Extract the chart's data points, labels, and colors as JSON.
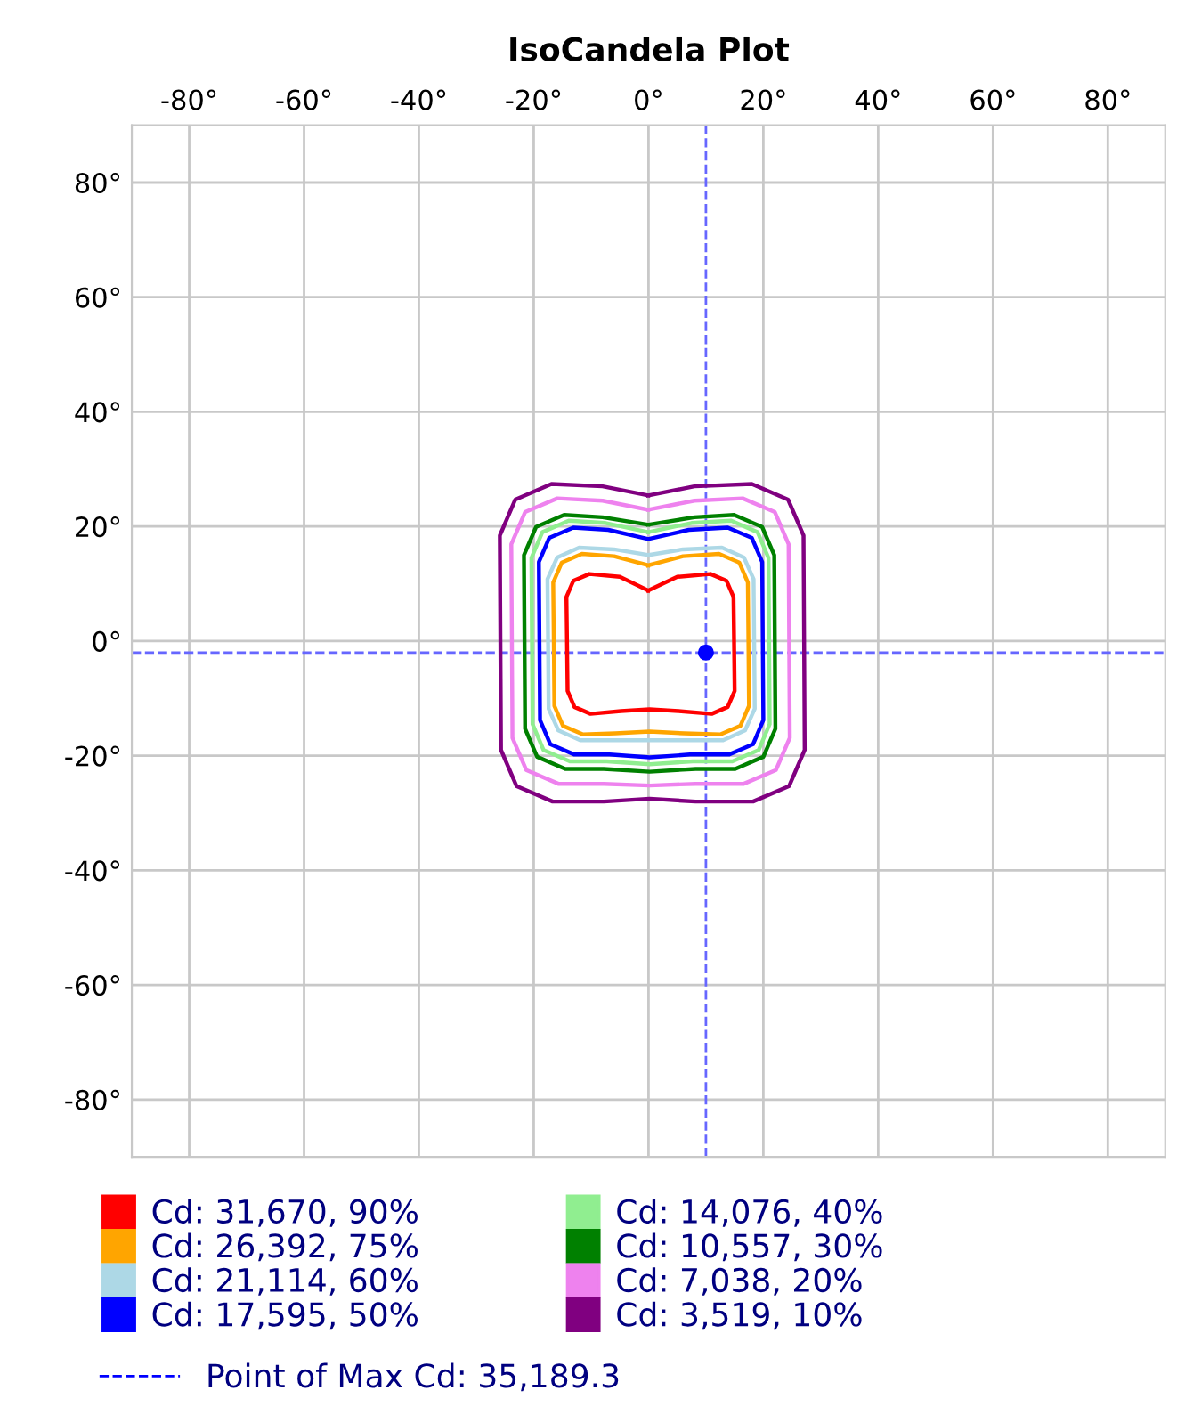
{
  "chart_data": {
    "type": "line",
    "title": "IsoCandela Plot",
    "xlim": [
      -90,
      90
    ],
    "ylim": [
      -90,
      90
    ],
    "xticks": [
      {
        "value": -80,
        "label": "-80°"
      },
      {
        "value": -60,
        "label": "-60°"
      },
      {
        "value": -40,
        "label": "-40°"
      },
      {
        "value": -20,
        "label": "-20°"
      },
      {
        "value": 0,
        "label": "0°"
      },
      {
        "value": 20,
        "label": "20°"
      },
      {
        "value": 40,
        "label": "40°"
      },
      {
        "value": 60,
        "label": "60°"
      },
      {
        "value": 80,
        "label": "80°"
      }
    ],
    "yticks": [
      {
        "value": 80,
        "label": "80°"
      },
      {
        "value": 60,
        "label": "60°"
      },
      {
        "value": 40,
        "label": "40°"
      },
      {
        "value": 20,
        "label": "20°"
      },
      {
        "value": 0,
        "label": "0°"
      },
      {
        "value": -20,
        "label": "-20°"
      },
      {
        "value": -40,
        "label": "-40°"
      },
      {
        "value": -60,
        "label": "-60°"
      },
      {
        "value": -80,
        "label": "-80°"
      }
    ],
    "grid": true,
    "legend": "bottom",
    "line_style": "solid",
    "marker": "none",
    "series": [
      {
        "name": "Cd: 31,670, 90%",
        "color": "#ff0000",
        "x": [
          0,
          -5,
          -10.3,
          -13.1,
          -14.3,
          -14.2,
          -14.1,
          -12.9,
          -10.1,
          -4.8,
          0.2,
          5.2,
          11,
          13.8,
          15,
          14.9,
          14.8,
          13.6,
          10.8,
          5,
          -0.1
        ],
        "values": [
          8.8,
          11.2,
          11.7,
          10.5,
          7.7,
          0,
          -8.7,
          -11.5,
          -12.7,
          -12.2,
          -11.9,
          -12.2,
          -12.7,
          -11.5,
          -8.7,
          0,
          7.7,
          10.5,
          11.7,
          11.2,
          8.8
        ]
      },
      {
        "name": "Cd: 26,392, 75%",
        "color": "#ffa500",
        "x": [
          0,
          -6,
          -11.6,
          -15.1,
          -16.6,
          -16.5,
          -16.4,
          -14.9,
          -11.4,
          -5.8,
          0.2,
          6.2,
          12.5,
          16,
          17.5,
          17.4,
          17.3,
          15.8,
          12.3,
          6,
          -0.1
        ],
        "values": [
          13.2,
          14.8,
          15.2,
          13.7,
          10.2,
          0,
          -11.3,
          -14.8,
          -16.3,
          -16.1,
          -15.8,
          -16.1,
          -16.3,
          -14.8,
          -11.3,
          0,
          10.2,
          13.7,
          15.2,
          14.8,
          13.2
        ]
      },
      {
        "name": "Cd: 21,114, 60%",
        "color": "#add8e6",
        "x": [
          0,
          -6,
          -12.1,
          -15.9,
          -17.6,
          -17.5,
          -17.4,
          -15.7,
          -11.9,
          -5.8,
          0.2,
          6.2,
          13,
          16.8,
          18.5,
          18.4,
          18.3,
          16.6,
          12.8,
          6,
          -0.1
        ],
        "values": [
          15,
          16,
          16.3,
          14.6,
          10.8,
          0,
          -11.8,
          -15.6,
          -17.3,
          -17.3,
          -17.3,
          -17.3,
          -17.3,
          -15.6,
          -11.8,
          0,
          10.8,
          14.6,
          16.3,
          16,
          15
        ]
      },
      {
        "name": "Cd: 17,595, 50%",
        "color": "#0000ff",
        "x": [
          0,
          -7,
          -13.1,
          -17.3,
          -19.1,
          -19,
          -18.9,
          -17.1,
          -12.9,
          -6.8,
          0.2,
          7.2,
          14,
          18.2,
          20,
          19.9,
          19.8,
          18,
          13.8,
          7,
          -0.1
        ],
        "values": [
          17.8,
          19.4,
          19.8,
          18,
          13.8,
          0,
          -13.8,
          -18,
          -19.8,
          -19.8,
          -20.3,
          -19.8,
          -19.8,
          -18,
          -13.8,
          0,
          13.8,
          18,
          19.8,
          19.4,
          17.8
        ]
      },
      {
        "name": "Cd: 14,076, 40%",
        "color": "#90ee90",
        "x": [
          0,
          -7.5,
          -13.9,
          -18.5,
          -20.4,
          -20.3,
          -20.2,
          -18.3,
          -13.7,
          -7.3,
          0.2,
          7.7,
          14.6,
          19.2,
          21.1,
          21,
          20.9,
          19,
          14.4,
          7.5,
          -0.1
        ],
        "values": [
          19,
          20.6,
          21,
          19,
          14.5,
          0,
          -14.5,
          -19,
          -21,
          -21,
          -21.5,
          -21,
          -21,
          -19,
          -14.5,
          0,
          14.5,
          19,
          21,
          20.6,
          19
        ]
      },
      {
        "name": "Cd: 10,557, 30%",
        "color": "#008000",
        "x": [
          0,
          -8,
          -14.7,
          -19.6,
          -21.7,
          -21.6,
          -21.5,
          -19.4,
          -14.5,
          -7.8,
          0.2,
          8.2,
          15.1,
          20,
          22.1,
          22,
          21.9,
          19.8,
          14.9,
          8,
          -0.1
        ],
        "values": [
          20.3,
          21.6,
          22,
          19.9,
          15,
          0,
          -15.3,
          -20.2,
          -22.3,
          -22.3,
          -22.8,
          -22.3,
          -22.3,
          -20.2,
          -15.3,
          0,
          15,
          19.9,
          22,
          21.6,
          20.3
        ]
      },
      {
        "name": "Cd: 7,038, 20%",
        "color": "#ee82ee",
        "x": [
          0,
          -8,
          -15.9,
          -21.5,
          -23.9,
          -23.8,
          -23.7,
          -21.3,
          -15.7,
          -7.8,
          0.2,
          8.2,
          16.6,
          22.2,
          24.6,
          24.5,
          24.4,
          22,
          16.4,
          8,
          -0.1
        ],
        "values": [
          22.9,
          24.5,
          24.9,
          22.5,
          16.9,
          0,
          -16.9,
          -22.5,
          -24.9,
          -24.9,
          -25.2,
          -24.9,
          -24.9,
          -22.5,
          -16.9,
          0,
          16.9,
          22.5,
          24.9,
          24.5,
          22.9
        ]
      },
      {
        "name": "Cd: 3,519, 10%",
        "color": "#800080",
        "x": [
          0,
          -8,
          -16.9,
          -23.2,
          -25.9,
          -25.8,
          -25.7,
          -23,
          -16.7,
          -7.8,
          0.2,
          8.2,
          18.2,
          24.5,
          27.2,
          27.1,
          27,
          24.3,
          18,
          8,
          -0.1
        ],
        "values": [
          25.4,
          27,
          27.4,
          24.7,
          18.4,
          0,
          -19,
          -25.3,
          -28,
          -28,
          -27.5,
          -28,
          -28,
          -25.3,
          -19,
          0,
          18.4,
          24.7,
          27.4,
          27,
          25.4
        ]
      },
      {
        "type": "scatter",
        "name": "Point of Max Cd: 35,189.3",
        "marker": "circle",
        "color": "#0000ff",
        "x": [
          10
        ],
        "values": [
          -2
        ]
      }
    ],
    "ref_lines": [
      {
        "axis": "x",
        "value": 10,
        "color": "#6666ff",
        "line_style": "dashed"
      },
      {
        "axis": "y",
        "value": -2,
        "color": "#6666ff",
        "line_style": "dashed"
      }
    ]
  }
}
